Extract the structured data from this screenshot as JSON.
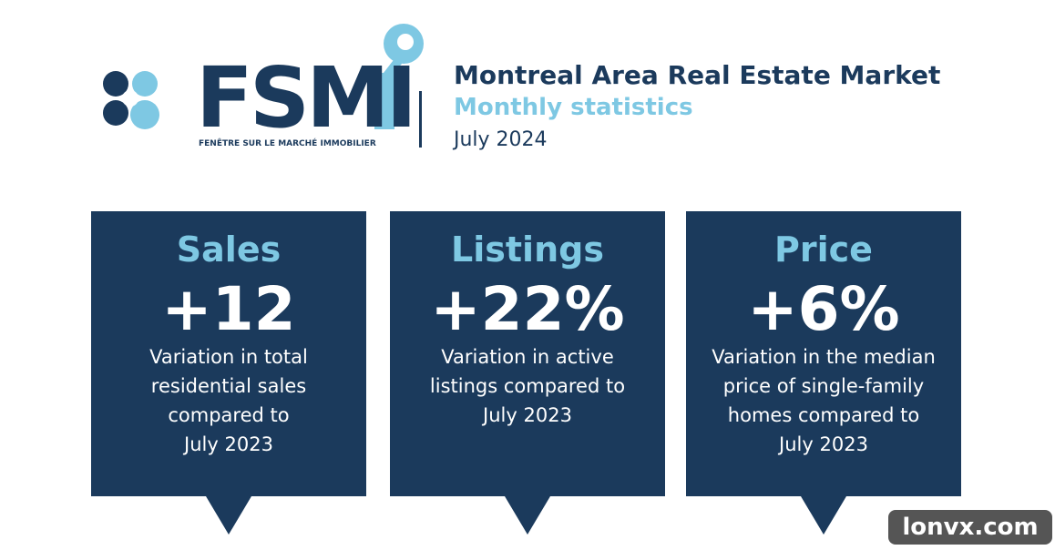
{
  "header": {
    "logo": "FSMI",
    "logo_tagline": "FENÊTRE SUR LE MARCHÉ IMMOBILIER",
    "title": "Montreal Area Real Estate Market",
    "subtitle": "Monthly statistics",
    "date": "July 2024"
  },
  "cards": [
    {
      "title": "Sales",
      "value": "+12",
      "description": [
        "Variation in total",
        "residential sales",
        "compared to",
        "July 2023"
      ]
    },
    {
      "title": "Listings",
      "value": "+22%",
      "description": [
        "Variation in active",
        "listings compared to",
        "July 2023"
      ]
    },
    {
      "title": "Price",
      "value": "+6%",
      "description": [
        "Variation in the median",
        "price of single-family",
        "homes compared to",
        "July 2023"
      ]
    }
  ],
  "watermark": "lonvx.com"
}
